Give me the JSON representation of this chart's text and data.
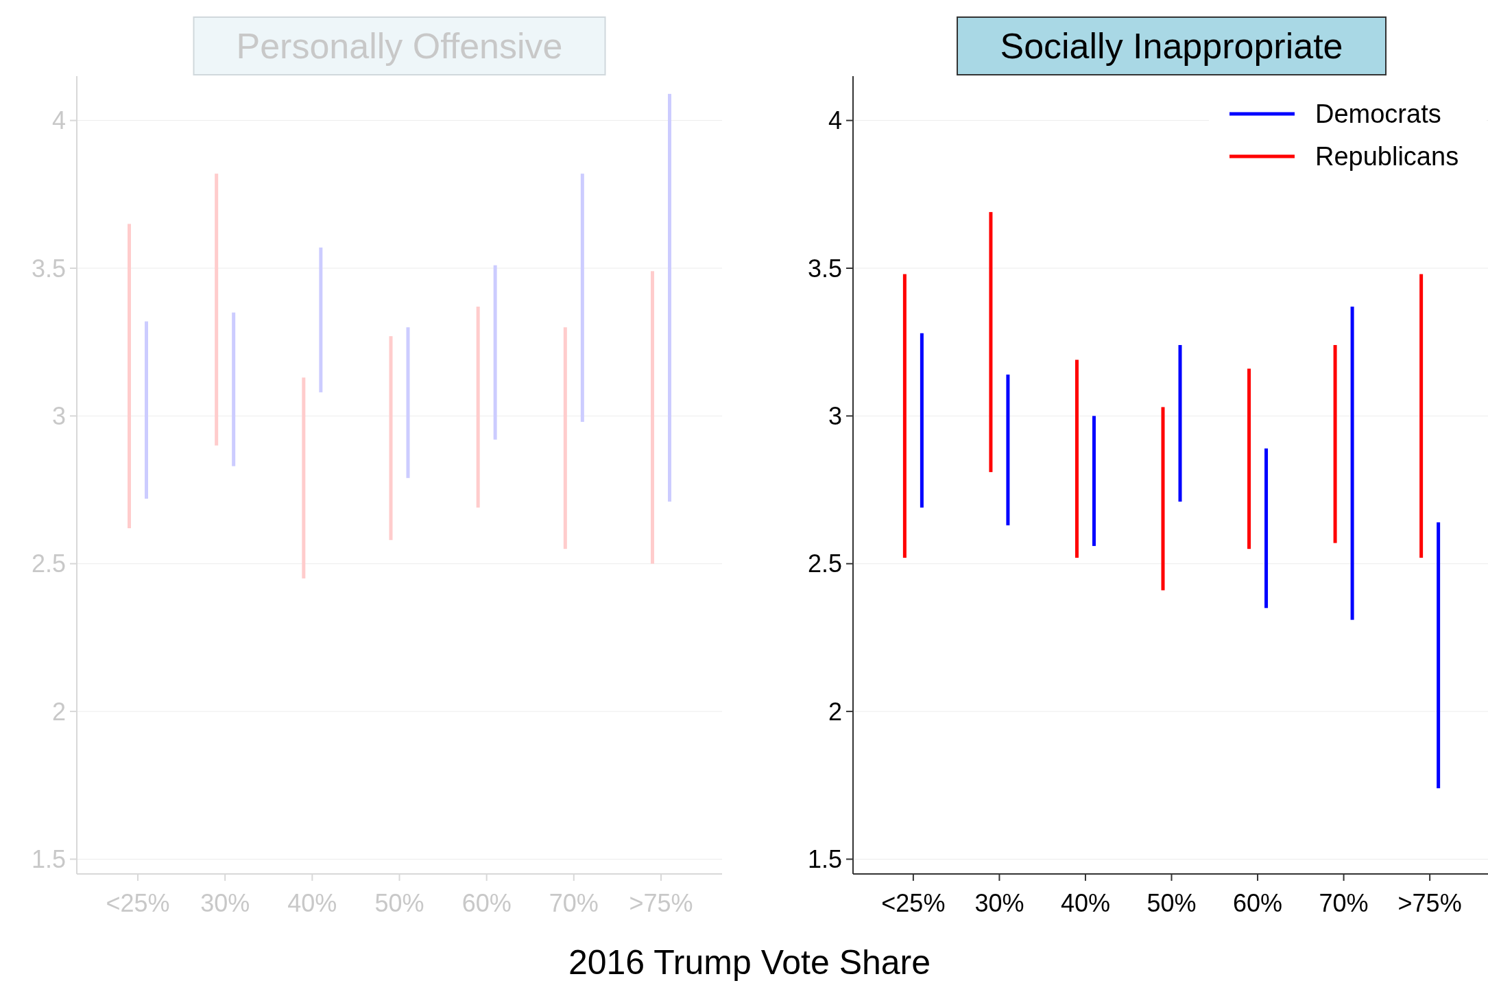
{
  "chart_data": [
    {
      "type": "bar",
      "title": "Personally Offensive",
      "categories": [
        "<25%",
        "30%",
        "40%",
        "50%",
        "60%",
        "70%",
        ">75%"
      ],
      "ylim": [
        1.45,
        4.15
      ],
      "yticks": [
        1.5,
        2,
        2.5,
        3,
        3.5,
        4
      ],
      "grid": "y",
      "series": [
        {
          "color": "#ffcccc",
          "base": [
            2.62,
            2.9,
            2.45,
            2.58,
            2.69,
            2.55,
            2.5
          ],
          "values": [
            1.03,
            0.92,
            0.68,
            0.69,
            0.68,
            0.75,
            0.99
          ]
        },
        {
          "color": "#ccccff",
          "base": [
            2.72,
            2.83,
            3.08,
            2.79,
            2.92,
            2.98,
            2.71
          ],
          "values": [
            0.6,
            0.52,
            0.49,
            0.51,
            0.59,
            0.84,
            1.38
          ]
        }
      ]
    },
    {
      "type": "bar",
      "title": "Socially Inappropriate",
      "xlabel": "2016 Trump Vote Share",
      "categories": [
        "<25%",
        "30%",
        "40%",
        "50%",
        "60%",
        "70%",
        ">75%"
      ],
      "ylim": [
        1.45,
        4.15
      ],
      "yticks": [
        1.5,
        2,
        2.5,
        3,
        3.5,
        4
      ],
      "grid": "y",
      "legend": "top right",
      "series": [
        {
          "name": "Republicans",
          "color": "#ff0000",
          "base": [
            2.52,
            2.81,
            2.52,
            2.41,
            2.55,
            2.57,
            2.52
          ],
          "values": [
            0.96,
            0.88,
            0.67,
            0.62,
            0.61,
            0.67,
            0.96
          ]
        },
        {
          "name": "Democrats",
          "color": "#0000ff",
          "base": [
            2.69,
            2.63,
            2.56,
            2.71,
            2.35,
            2.31,
            1.74
          ],
          "values": [
            0.59,
            0.51,
            0.44,
            0.53,
            0.54,
            1.06,
            0.9
          ]
        }
      ]
    }
  ]
}
